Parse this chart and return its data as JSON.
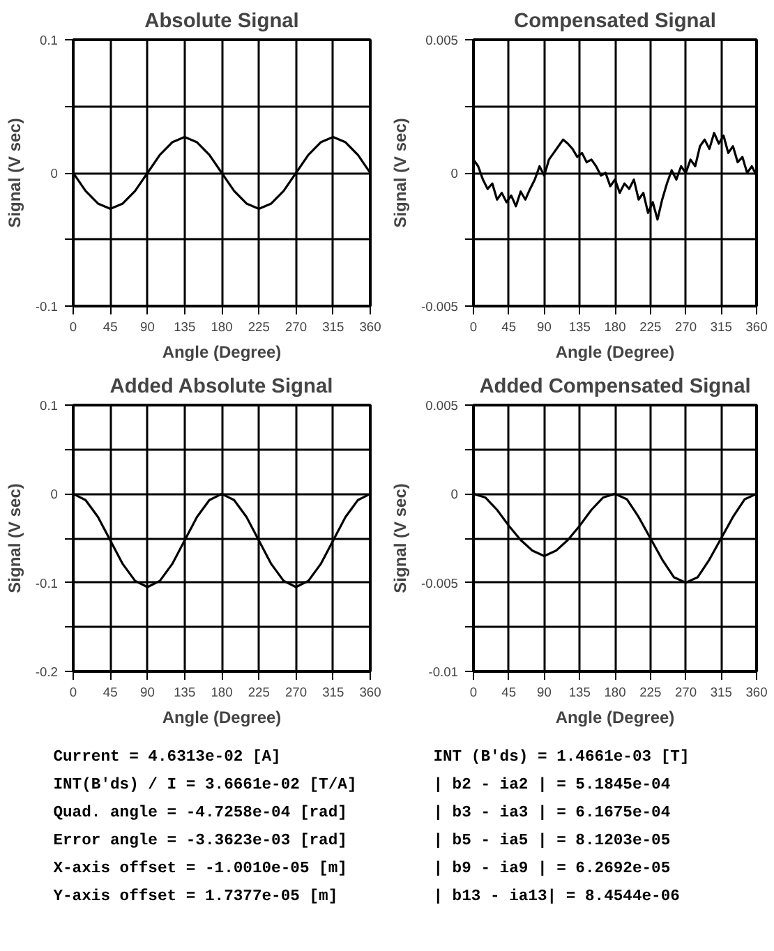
{
  "chart_data": [
    {
      "type": "line",
      "title": "Absolute Signal",
      "xlabel": "Angle (Degree)",
      "ylabel": "Signal (V sec)",
      "color": "#000000",
      "grid": true,
      "x": [
        0,
        15,
        30,
        45,
        60,
        75,
        90,
        105,
        120,
        135,
        150,
        165,
        180,
        195,
        210,
        225,
        240,
        255,
        270,
        285,
        300,
        315,
        330,
        345,
        360
      ],
      "values": [
        0,
        -0.0135,
        -0.023,
        -0.027,
        -0.023,
        -0.0135,
        0,
        0.0135,
        0.023,
        0.027,
        0.023,
        0.0135,
        0,
        -0.0135,
        -0.023,
        -0.027,
        -0.023,
        -0.0135,
        0,
        0.0135,
        0.023,
        0.027,
        0.023,
        0.0135,
        0
      ],
      "xlim": [
        0,
        360
      ],
      "xticks": [
        0,
        45,
        90,
        135,
        180,
        225,
        270,
        315,
        360
      ],
      "ylim": [
        -0.1,
        0.1
      ],
      "yticks": [
        0.1,
        {
          "value": 0.05,
          "label": null
        },
        0,
        {
          "value": -0.05,
          "label": null
        },
        -0.1
      ]
    },
    {
      "type": "line",
      "title": "Compensated Signal",
      "xlabel": "Angle (Degree)",
      "ylabel": "Signal (V sec)",
      "color": "#000000",
      "grid": true,
      "x": [
        0,
        6,
        12,
        18,
        24,
        30,
        36,
        42,
        48,
        54,
        60,
        66,
        72,
        78,
        84,
        90,
        96,
        102,
        108,
        114,
        120,
        126,
        132,
        138,
        144,
        150,
        156,
        162,
        168,
        174,
        180,
        186,
        192,
        198,
        204,
        210,
        216,
        222,
        228,
        234,
        240,
        246,
        252,
        258,
        264,
        270,
        276,
        282,
        288,
        294,
        300,
        306,
        312,
        318,
        324,
        330,
        336,
        342,
        348,
        354,
        360
      ],
      "values": [
        0.0005,
        0.00025,
        -0.00025,
        -0.0006,
        -0.0004,
        -0.001,
        -0.00075,
        -0.0011,
        -0.00085,
        -0.00125,
        -0.0007,
        -0.001,
        -0.0006,
        -0.00025,
        0.00025,
        -0.0001,
        0.0005,
        0.00075,
        0.001,
        0.00125,
        0.0011,
        0.0009,
        0.0006,
        0.00075,
        0.0004,
        0.0005,
        0.00025,
        -0.0001,
        0,
        -0.0005,
        -0.00025,
        -0.00075,
        -0.0004,
        -0.0006,
        -0.00025,
        -0.001,
        -0.00075,
        -0.0015,
        -0.0011,
        -0.00175,
        -0.001,
        -0.0004,
        0.0001,
        -0.00025,
        0.00025,
        0,
        0.0005,
        0.00025,
        0.001,
        0.00125,
        0.0009,
        0.0015,
        0.0011,
        0.0014,
        0.00075,
        0.001,
        0.0004,
        0.0006,
        0,
        0.00025,
        -0.0001
      ],
      "xlim": [
        0,
        360
      ],
      "xticks": [
        0,
        45,
        90,
        135,
        180,
        225,
        270,
        315,
        360
      ],
      "ylim": [
        -0.005,
        0.005
      ],
      "yticks": [
        0.005,
        {
          "value": 0.0025,
          "label": null
        },
        0,
        {
          "value": -0.0025,
          "label": null
        },
        -0.005
      ]
    },
    {
      "type": "line",
      "title": "Added Absolute Signal",
      "xlabel": "Angle (Degree)",
      "ylabel": "Signal (V sec)",
      "color": "#000000",
      "grid": true,
      "x": [
        0,
        15,
        30,
        45,
        60,
        75,
        90,
        105,
        120,
        135,
        150,
        165,
        180,
        195,
        210,
        225,
        240,
        255,
        270,
        285,
        300,
        315,
        330,
        345,
        360
      ],
      "values": [
        0,
        -0.007,
        -0.026,
        -0.0525,
        -0.079,
        -0.098,
        -0.105,
        -0.098,
        -0.079,
        -0.0525,
        -0.026,
        -0.007,
        0,
        -0.007,
        -0.026,
        -0.0525,
        -0.079,
        -0.098,
        -0.105,
        -0.098,
        -0.079,
        -0.0525,
        -0.026,
        -0.007,
        0
      ],
      "xlim": [
        0,
        360
      ],
      "xticks": [
        0,
        45,
        90,
        135,
        180,
        225,
        270,
        315,
        360
      ],
      "ylim": [
        -0.2,
        0.1
      ],
      "yticks": [
        0.1,
        {
          "value": 0.05,
          "label": null
        },
        0,
        {
          "value": -0.05,
          "label": null
        },
        -0.1,
        {
          "value": -0.15,
          "label": null
        },
        -0.2
      ]
    },
    {
      "type": "line",
      "title": "Added Compensated Signal",
      "xlabel": "Angle (Degree)",
      "ylabel": "Signal (V sec)",
      "color": "#000000",
      "grid": true,
      "x": [
        0,
        15,
        30,
        45,
        60,
        75,
        90,
        105,
        120,
        135,
        150,
        165,
        180,
        195,
        210,
        225,
        240,
        255,
        270,
        285,
        300,
        315,
        330,
        345,
        360
      ],
      "values": [
        0,
        -0.0002,
        -0.0009,
        -0.0018,
        -0.0026,
        -0.0032,
        -0.0035,
        -0.0032,
        -0.0026,
        -0.0018,
        -0.0009,
        -0.0002,
        0,
        -0.0003,
        -0.0013,
        -0.0025,
        -0.0037,
        -0.0047,
        -0.005,
        -0.0047,
        -0.0037,
        -0.0025,
        -0.0013,
        -0.0003,
        0
      ],
      "xlim": [
        0,
        360
      ],
      "xticks": [
        0,
        45,
        90,
        135,
        180,
        225,
        270,
        315,
        360
      ],
      "ylim": [
        -0.01,
        0.005
      ],
      "yticks": [
        0.005,
        {
          "value": 0.0025,
          "label": null
        },
        0,
        {
          "value": -0.0025,
          "label": null
        },
        -0.005,
        {
          "value": -0.0075,
          "label": null
        },
        -0.01
      ]
    },
    {
      "type": "other",
      "annotations": [
        "Current       =  4.6313e-02 [A]",
        "INT(B'ds) / I =  3.6661e-02 [T/A]",
        "Quad. angle   = -4.7258e-04 [rad]",
        "Error angle   = -3.3623e-03 [rad]",
        "X-axis offset = -1.0010e-05 [m]",
        "Y-axis offset =  1.7377e-05 [m]",
        "INT (B'ds)    =  1.4661e-03 [T]",
        "| b2  - ia2 | =  5.1845e-04",
        "| b3  - ia3 | =  6.1675e-04",
        "| b5  - ia5 | =  8.1203e-05",
        "| b9  - ia9 | =  6.2692e-05",
        "| b13 - ia13| =  8.4544e-06"
      ]
    }
  ]
}
